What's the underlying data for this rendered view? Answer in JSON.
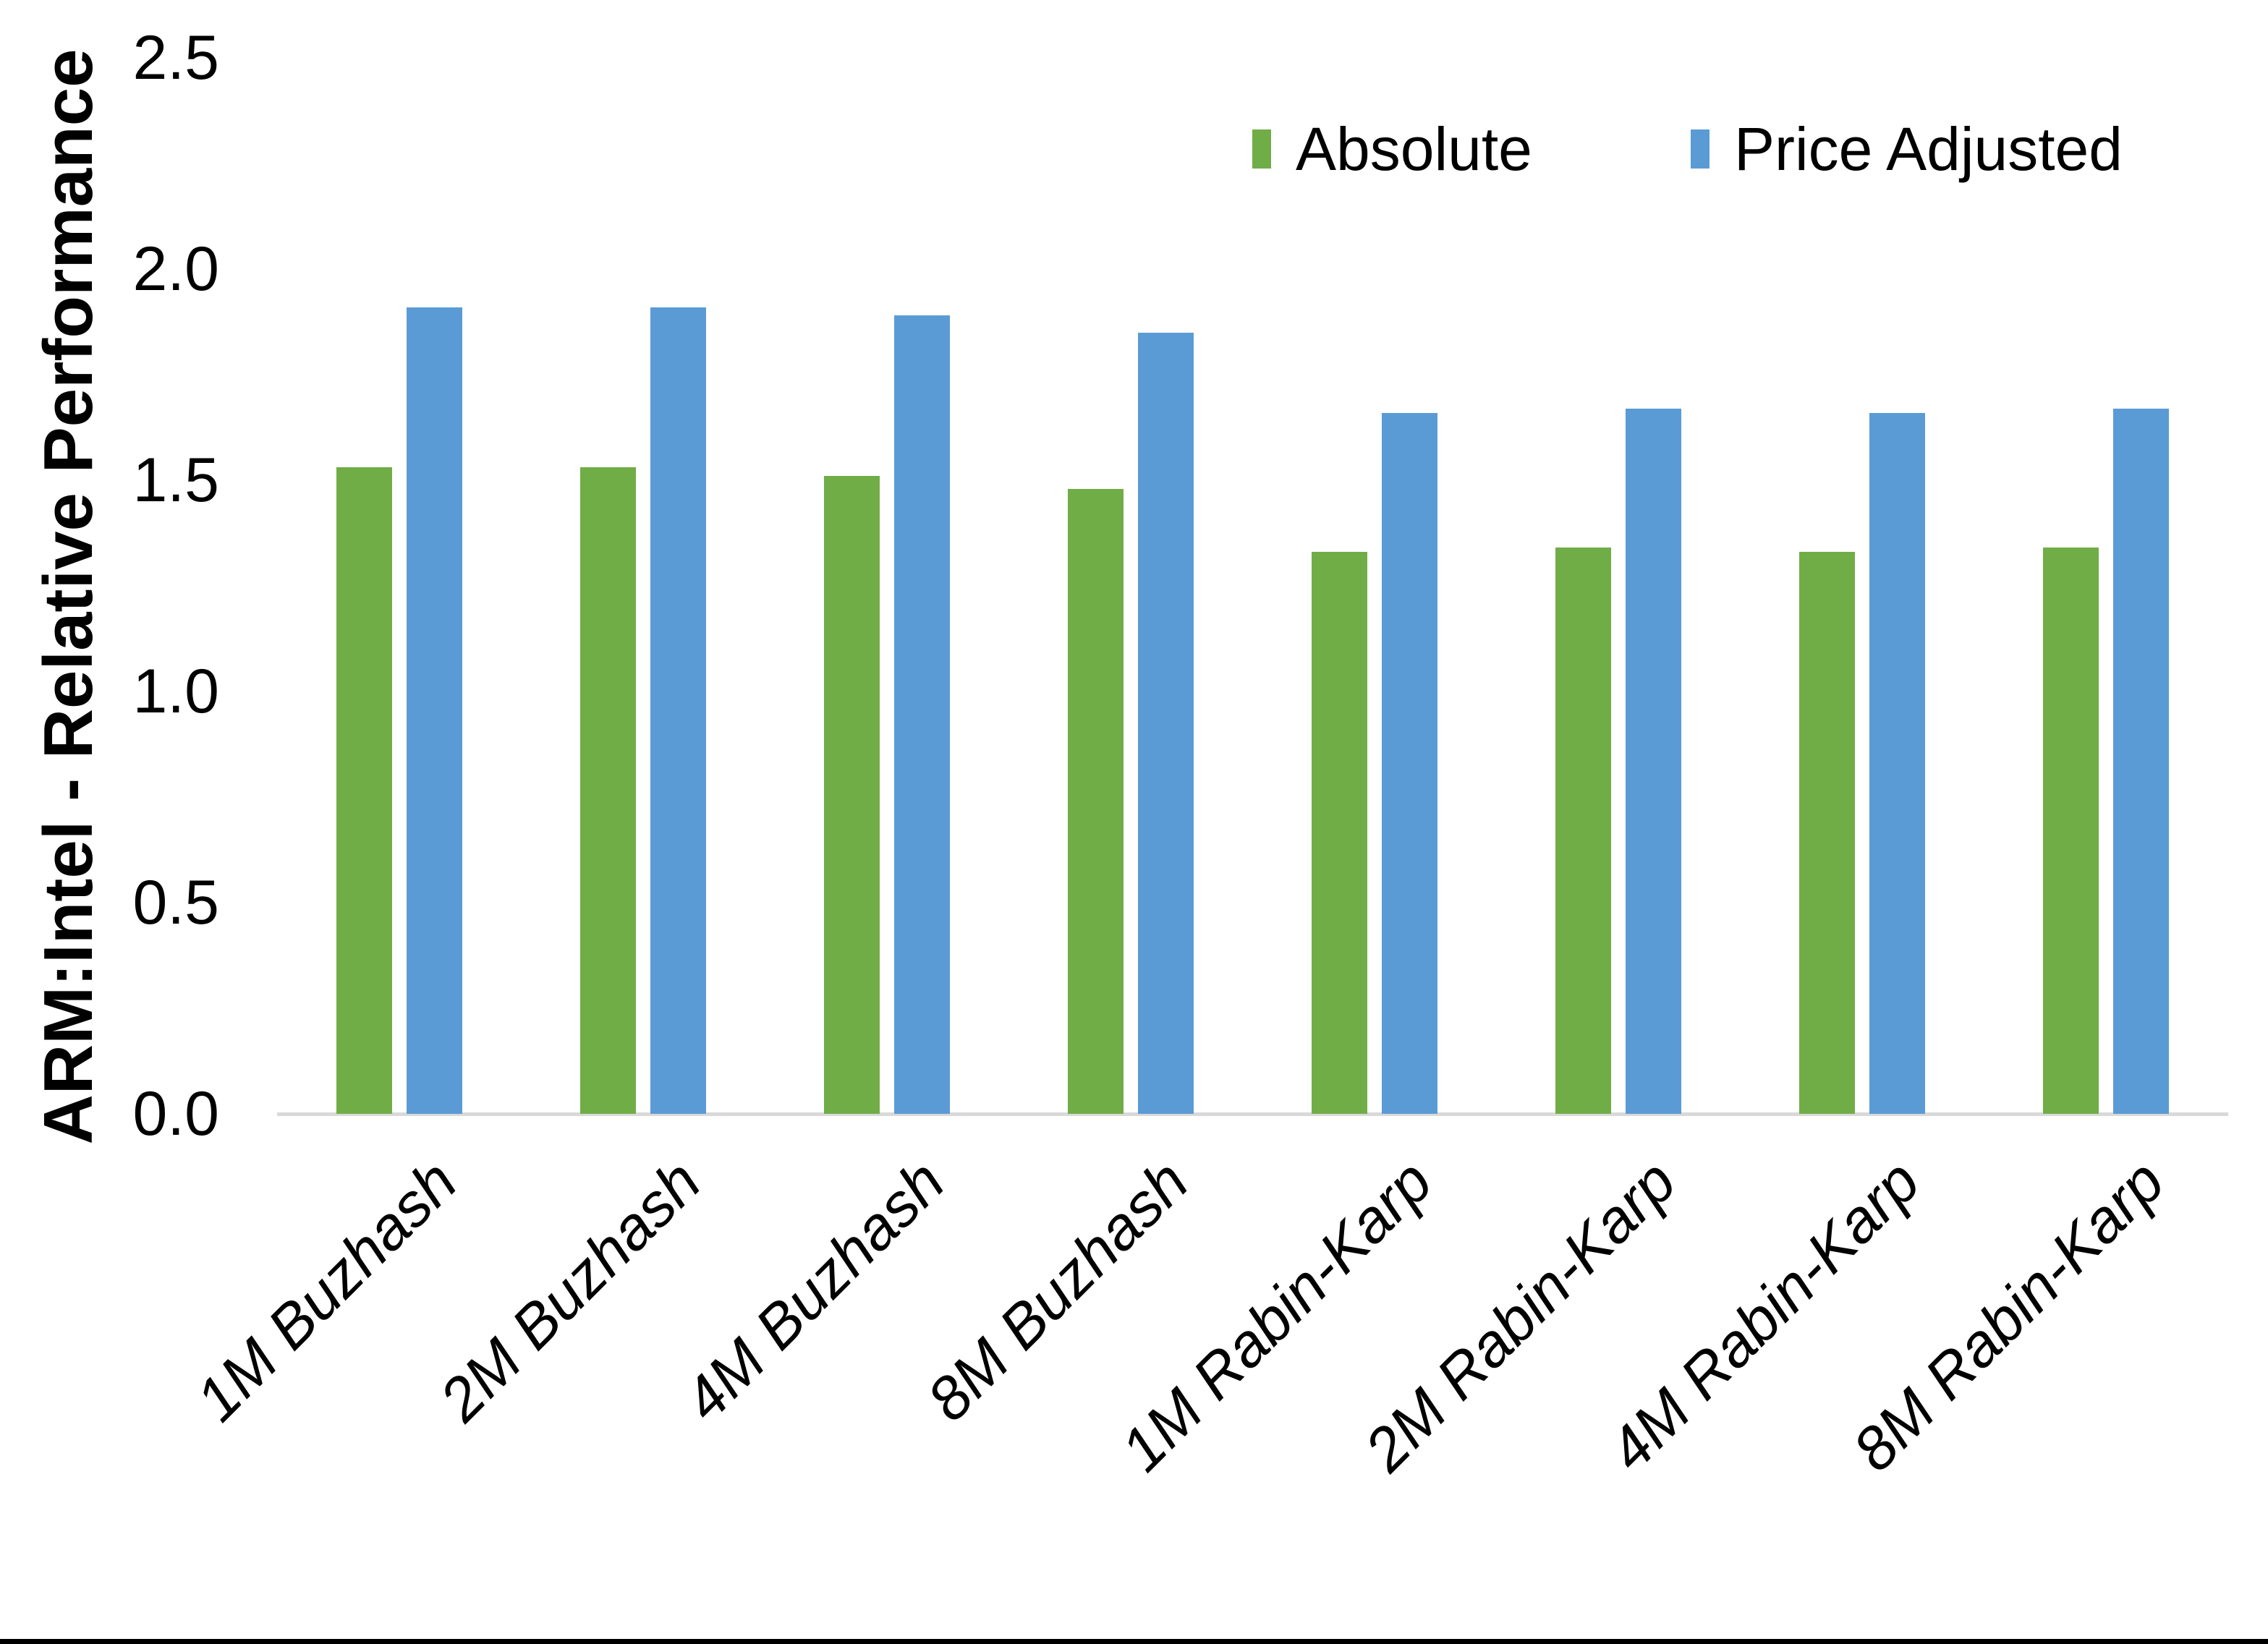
{
  "chart_data": {
    "type": "bar",
    "title": "",
    "xlabel": "",
    "ylabel": "ARM:Intel - Relative Performance",
    "categories": [
      "1M Buzhash",
      "2M Buzhash",
      "4M Buzhash",
      "8M Buzhash",
      "1M Rabin-Karp",
      "2M Rabin-Karp",
      "4M Rabin-Karp",
      "8M Rabin-Karp"
    ],
    "series": [
      {
        "name": "Absolute",
        "color": "#70AD47",
        "values": [
          1.53,
          1.53,
          1.51,
          1.48,
          1.33,
          1.34,
          1.33,
          1.34
        ]
      },
      {
        "name": "Price Adjusted",
        "color": "#5B9BD5",
        "values": [
          1.91,
          1.91,
          1.89,
          1.85,
          1.66,
          1.67,
          1.66,
          1.67
        ]
      }
    ],
    "ylim": [
      0,
      2.5
    ],
    "yticks": [
      0.0,
      0.5,
      1.0,
      1.5,
      2.0,
      2.5
    ],
    "ytick_labels": [
      "0.0",
      "0.5",
      "1.0",
      "1.5",
      "2.0",
      "2.5"
    ],
    "grid": false,
    "legend_position": "top-right",
    "axis_line_color": "#D9D9D9",
    "bottom_border_color": "#000000"
  }
}
